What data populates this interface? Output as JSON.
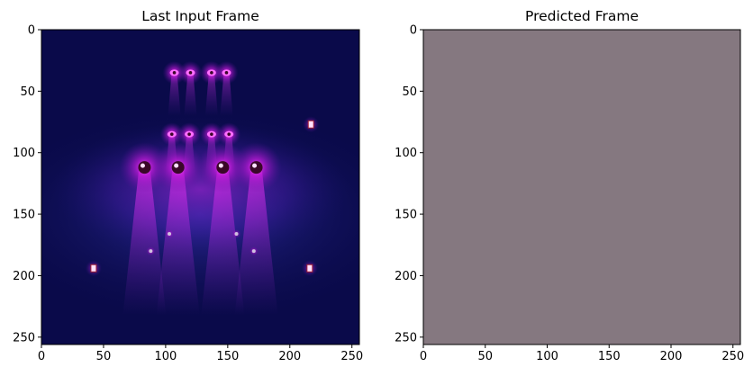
{
  "figure": {
    "background": "#ffffff"
  },
  "chart_data": [
    {
      "type": "heatmap",
      "title": "Last Input Frame",
      "xlabel": "",
      "ylabel": "",
      "image_size": [
        256,
        256
      ],
      "xlim": [
        0,
        256
      ],
      "ylim": [
        256,
        0
      ],
      "y_axis_inverted": true,
      "x_ticks": [
        0,
        50,
        100,
        150,
        200,
        250
      ],
      "y_ticks": [
        0,
        50,
        100,
        150,
        200,
        250
      ],
      "grid": false,
      "image_content": "dark navy stage with magenta spotlights",
      "colors": {
        "background": "#0a0a4a",
        "glow": "#c018d8",
        "glow_core": "#ff40ff",
        "lamp": "#ffe0ff"
      },
      "light_sources": [
        {
          "x": 120,
          "y": 35,
          "size": "small"
        },
        {
          "x": 137,
          "y": 35,
          "size": "small"
        },
        {
          "x": 107,
          "y": 35,
          "size": "small"
        },
        {
          "x": 149,
          "y": 35,
          "size": "small"
        },
        {
          "x": 105,
          "y": 85,
          "size": "small"
        },
        {
          "x": 119,
          "y": 85,
          "size": "small"
        },
        {
          "x": 137,
          "y": 85,
          "size": "small"
        },
        {
          "x": 151,
          "y": 85,
          "size": "small"
        },
        {
          "x": 83,
          "y": 112,
          "size": "large"
        },
        {
          "x": 110,
          "y": 112,
          "size": "large"
        },
        {
          "x": 146,
          "y": 112,
          "size": "large"
        },
        {
          "x": 173,
          "y": 112,
          "size": "large"
        },
        {
          "x": 42,
          "y": 194,
          "size": "lamp"
        },
        {
          "x": 216,
          "y": 194,
          "size": "lamp"
        },
        {
          "x": 217,
          "y": 77,
          "size": "lamp"
        },
        {
          "x": 88,
          "y": 180,
          "size": "tiny"
        },
        {
          "x": 171,
          "y": 180,
          "size": "tiny"
        },
        {
          "x": 103,
          "y": 166,
          "size": "tiny"
        },
        {
          "x": 157,
          "y": 166,
          "size": "tiny"
        }
      ]
    },
    {
      "type": "heatmap",
      "title": "Predicted Frame",
      "xlabel": "",
      "ylabel": "",
      "image_size": [
        256,
        256
      ],
      "xlim": [
        0,
        256
      ],
      "ylim": [
        256,
        0
      ],
      "y_axis_inverted": true,
      "x_ticks": [
        0,
        50,
        100,
        150,
        200,
        250
      ],
      "y_ticks": [
        0,
        50,
        100,
        150,
        200,
        250
      ],
      "grid": false,
      "image_content": "uniform grayish-mauve fill",
      "colors": {
        "fill": "#857880"
      }
    }
  ]
}
